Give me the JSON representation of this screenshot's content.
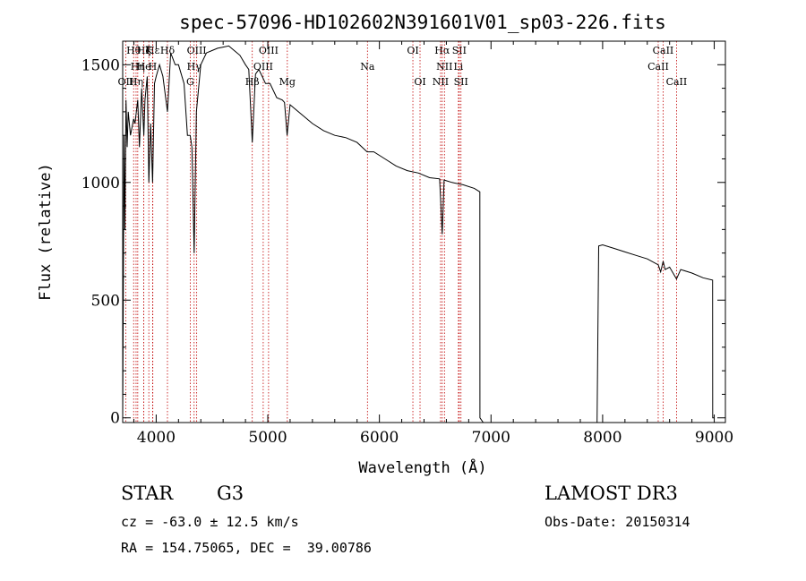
{
  "chart_data": {
    "type": "line",
    "title": "spec-57096-HD102602N391601V01_sp03-226.fits",
    "xlabel": "Wavelength (Å)",
    "ylabel": "Flux (relative)",
    "xlim": [
      3700,
      9100
    ],
    "ylim": [
      -20,
      1600
    ],
    "xticks": [
      4000,
      5000,
      6000,
      7000,
      8000,
      9000
    ],
    "yticks": [
      0,
      500,
      1000,
      1500
    ],
    "xtick_labels": [
      "4000",
      "5000",
      "6000",
      "7000",
      "8000",
      "9000"
    ],
    "ytick_labels": [
      "0",
      "500",
      "1000",
      "1500"
    ],
    "series": [
      {
        "name": "spectrum",
        "x": [
          3700,
          3706,
          3712,
          3720,
          3730,
          3740,
          3750,
          3770,
          3798,
          3810,
          3835,
          3850,
          3870,
          3889,
          3900,
          3920,
          3934,
          3950,
          3968,
          3985,
          4000,
          4030,
          4060,
          4101,
          4130,
          4170,
          4200,
          4250,
          4280,
          4305,
          4320,
          4340,
          4360,
          4400,
          4450,
          4500,
          4550,
          4600,
          4650,
          4700,
          4750,
          4800,
          4830,
          4861,
          4890,
          4920,
          4950,
          4980,
          5020,
          5080,
          5130,
          5150,
          5173,
          5200,
          5300,
          5400,
          5500,
          5600,
          5700,
          5800,
          5890,
          5950,
          6050,
          6150,
          6250,
          6350,
          6450,
          6540,
          6563,
          6580,
          6650,
          6750,
          6850,
          6900,
          6901,
          6930,
          7200,
          7500,
          7800,
          7950,
          7965,
          8000,
          8100,
          8200,
          8300,
          8400,
          8498,
          8520,
          8542,
          8560,
          8600,
          8662,
          8700,
          8800,
          8900,
          8985,
          8986,
          9000
        ],
        "y": [
          0,
          540,
          1200,
          800,
          1350,
          1150,
          1300,
          1200,
          1270,
          1250,
          1350,
          1150,
          1400,
          1200,
          1350,
          1450,
          1000,
          1250,
          1000,
          1420,
          1450,
          1500,
          1450,
          1300,
          1550,
          1500,
          1500,
          1420,
          1200,
          1200,
          1150,
          700,
          1300,
          1500,
          1550,
          1560,
          1570,
          1575,
          1580,
          1560,
          1540,
          1500,
          1480,
          1170,
          1460,
          1480,
          1450,
          1420,
          1420,
          1360,
          1350,
          1340,
          1200,
          1330,
          1290,
          1250,
          1220,
          1200,
          1190,
          1170,
          1130,
          1130,
          1100,
          1070,
          1050,
          1040,
          1020,
          1015,
          780,
          1010,
          1000,
          990,
          975,
          960,
          0,
          -20,
          -20,
          -20,
          -20,
          -20,
          730,
          735,
          720,
          705,
          690,
          675,
          650,
          620,
          665,
          630,
          640,
          590,
          630,
          615,
          595,
          585,
          0,
          0
        ]
      }
    ],
    "lines": [
      {
        "label": "Hθ",
        "x": 3798,
        "row": 0
      },
      {
        "label": "K",
        "x": 3934,
        "row": 0
      },
      {
        "label": "Hζ",
        "x": 3889,
        "row": 0
      },
      {
        "label": "Hε",
        "x": 3970,
        "row": 0
      },
      {
        "label": "Hδ",
        "x": 4101,
        "row": 0
      },
      {
        "label": "OIII",
        "x": 4363,
        "row": 0
      },
      {
        "label": "OIII",
        "x": 5007,
        "row": 0
      },
      {
        "label": "OI",
        "x": 6300,
        "row": 0
      },
      {
        "label": "Hα",
        "x": 6563,
        "row": 0
      },
      {
        "label": "SII",
        "x": 6716,
        "row": 0
      },
      {
        "label": "CaII",
        "x": 8542,
        "row": 0
      },
      {
        "label": "Hη",
        "x": 3835,
        "row": 1
      },
      {
        "label": "He",
        "x": 3889,
        "row": 1
      },
      {
        "label": "H",
        "x": 3968,
        "row": 1
      },
      {
        "label": "Hγ",
        "x": 4340,
        "row": 1
      },
      {
        "label": "OIII",
        "x": 4959,
        "row": 1
      },
      {
        "label": "Na",
        "x": 5893,
        "row": 1
      },
      {
        "label": "NII",
        "x": 6583,
        "row": 1
      },
      {
        "label": "Li",
        "x": 6708,
        "row": 1
      },
      {
        "label": "CaII",
        "x": 8498,
        "row": 1
      },
      {
        "label": "OII",
        "x": 3727,
        "row": 2
      },
      {
        "label": "Hη",
        "x": 3820,
        "row": 2
      },
      {
        "label": "G",
        "x": 4305,
        "row": 2
      },
      {
        "label": "Hβ",
        "x": 4861,
        "row": 2
      },
      {
        "label": "Mg",
        "x": 5175,
        "row": 2
      },
      {
        "label": "OI",
        "x": 6364,
        "row": 2
      },
      {
        "label": "NII",
        "x": 6548,
        "row": 2
      },
      {
        "label": "SII",
        "x": 6731,
        "row": 2
      },
      {
        "label": "CaII",
        "x": 8662,
        "row": 2
      }
    ]
  },
  "info": {
    "object_type": "STAR",
    "subclass": "G3",
    "survey": "LAMOST DR3",
    "cz": "cz = -63.0 ± 12.5 km/s",
    "obs_date": "Obs-Date: 20150314",
    "coords": "RA = 154.75065, DEC =  39.00786"
  }
}
